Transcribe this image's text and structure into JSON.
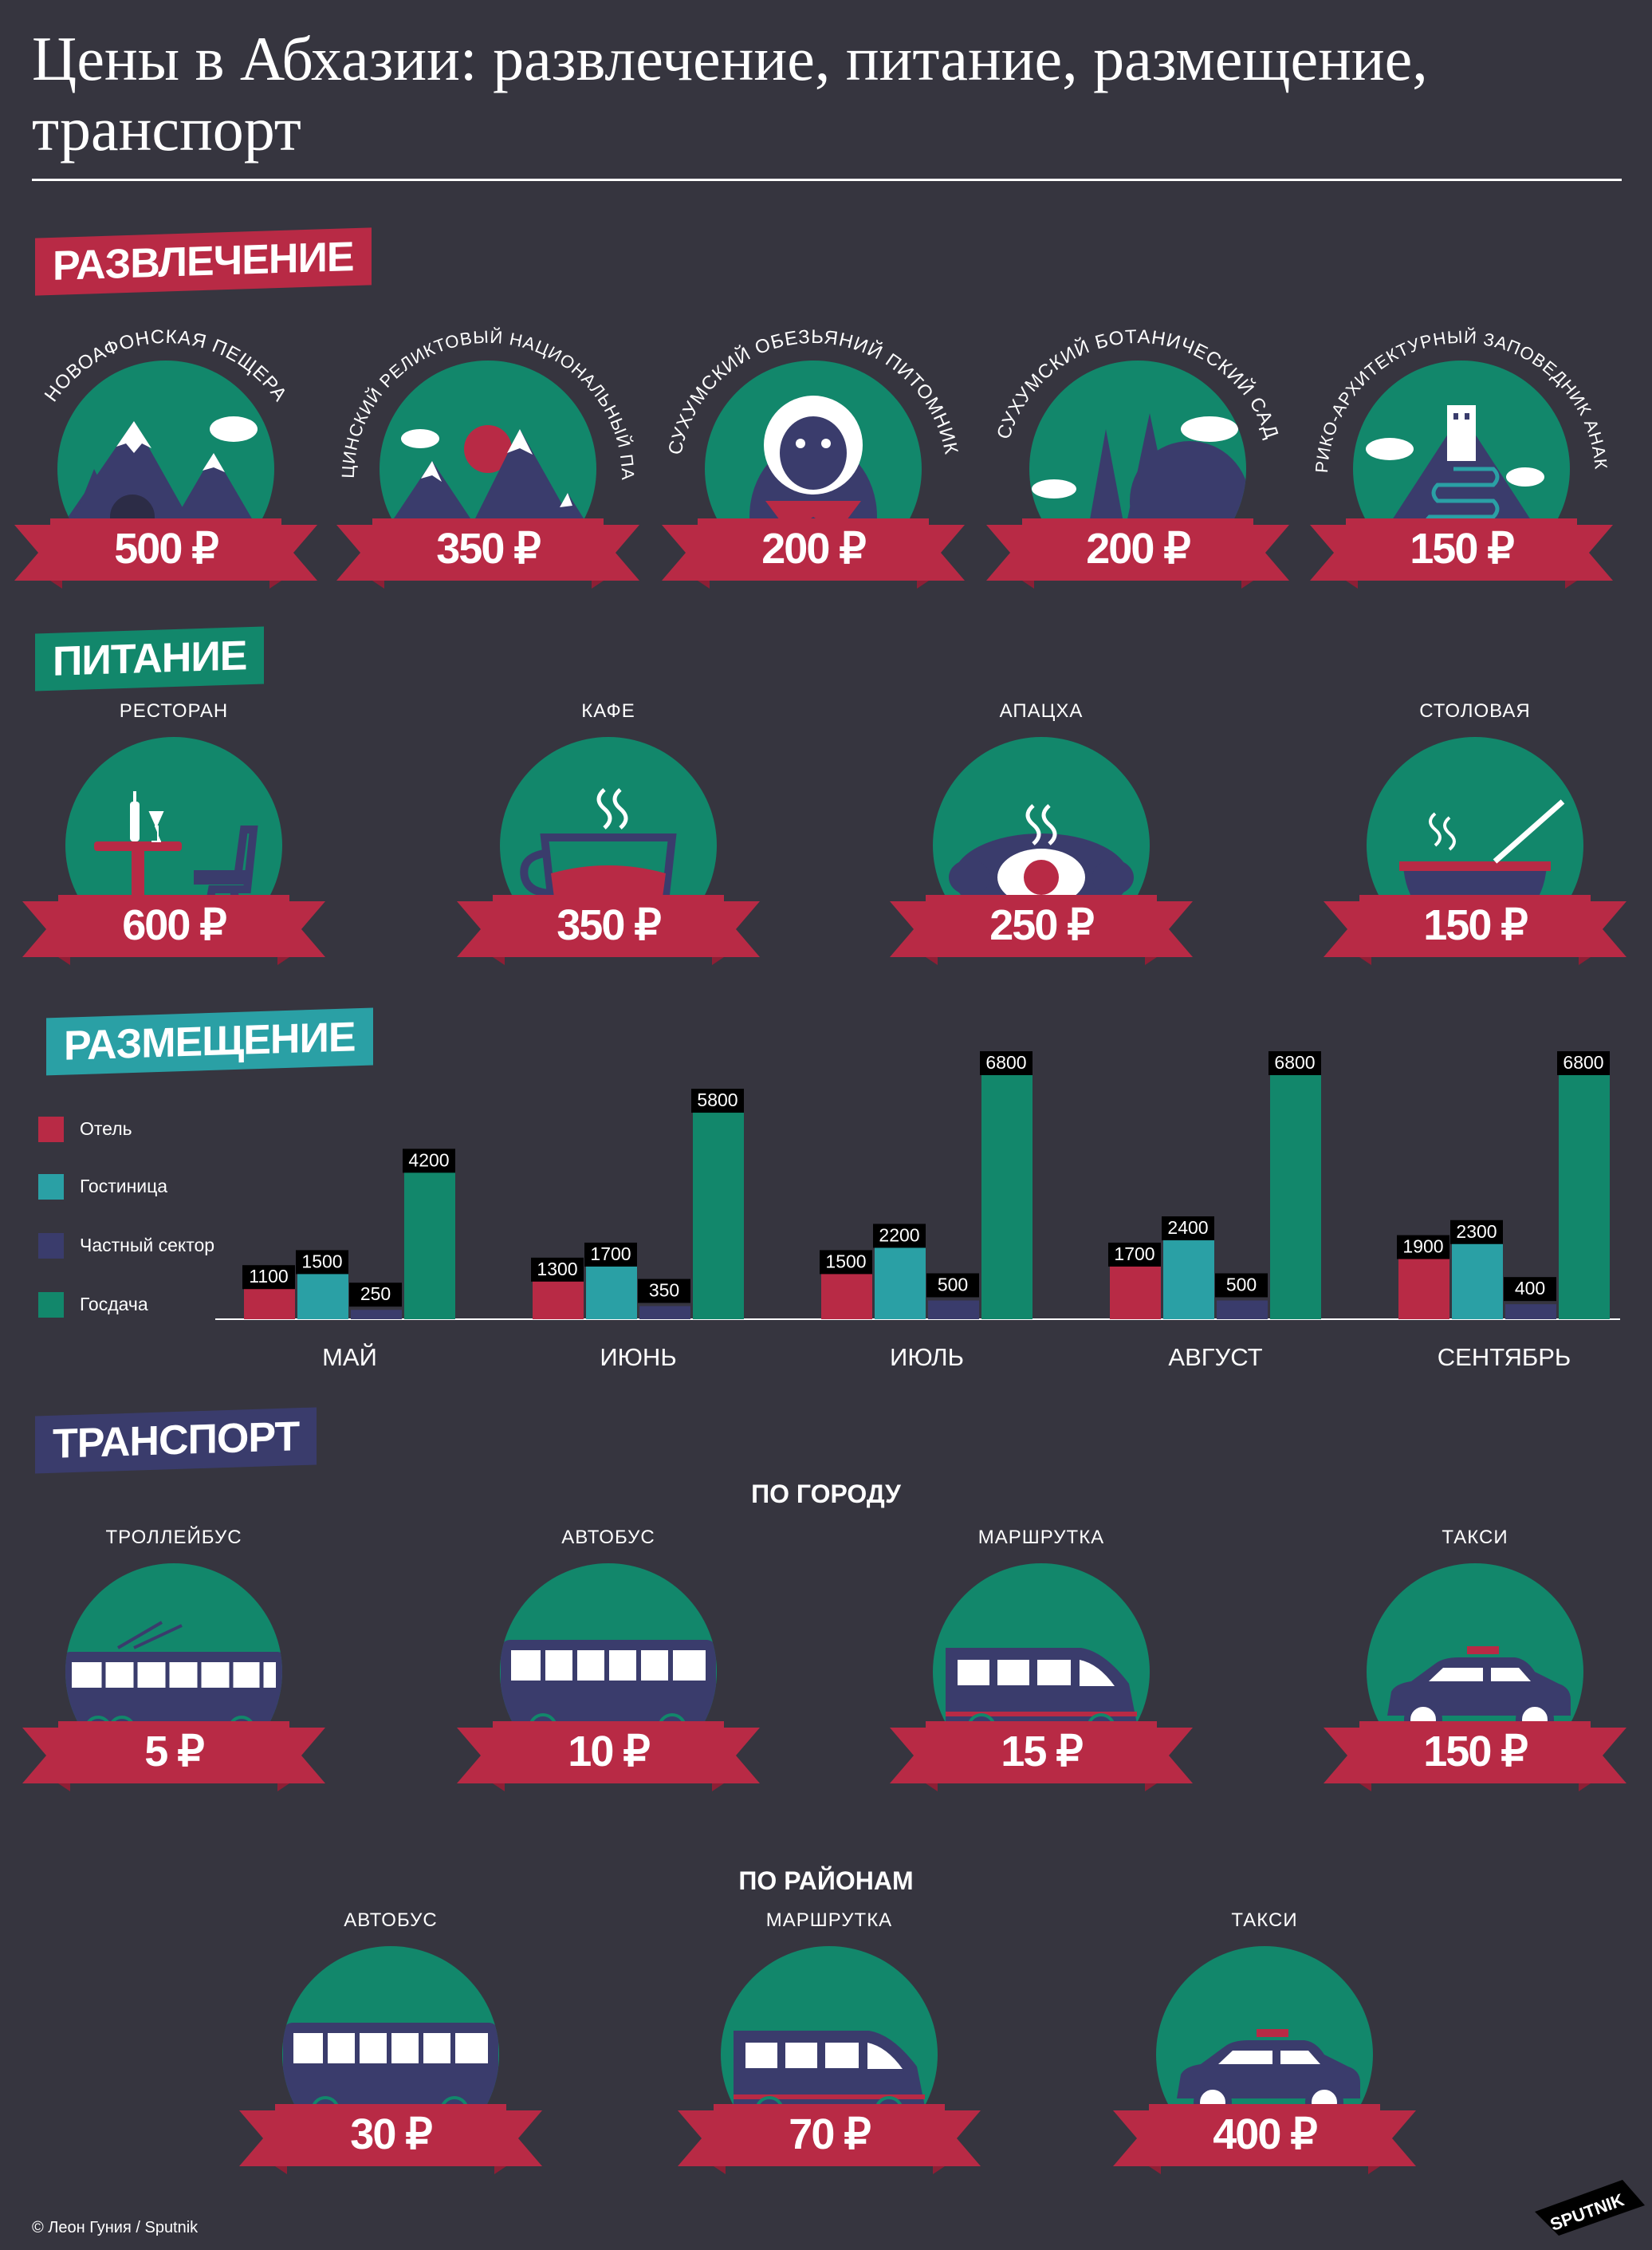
{
  "title": "Цены в Абхазии: развлечение, питание, размещение, транспорт",
  "colors": {
    "bg": "#36353f",
    "green": "#12876b",
    "red": "#b82a45",
    "teal": "#2aa0a5",
    "navy": "#3a3c6c",
    "white": "#ffffff"
  },
  "sections": {
    "entertainment": {
      "label": "РАЗВЛЕЧЕНИЕ",
      "items": [
        {
          "name": "НОВОАФОНСКАЯ ПЕЩЕРА",
          "price": "500 ₽",
          "icon": "cave-mountain-icon"
        },
        {
          "name": "РИЦИНСКИЙ РЕЛИКТОВЫЙ НАЦИОНАЛЬНЫЙ ПАРК",
          "price": "350 ₽",
          "icon": "mountain-lake-icon"
        },
        {
          "name": "СУХУМСКИЙ ОБЕЗЬЯНИЙ ПИТОМНИК",
          "price": "200 ₽",
          "icon": "monkey-icon"
        },
        {
          "name": "СУХУМСКИЙ БОТАНИЧЕСКИЙ САД",
          "price": "200 ₽",
          "icon": "trees-icon"
        },
        {
          "name": "ИСТОРИКО-АРХИТЕКТУРНЫЙ ЗАПОВЕДНИК АНАКОПИЯ",
          "price": "150 ₽",
          "icon": "fortress-tower-icon"
        }
      ]
    },
    "food": {
      "label": "ПИТАНИЕ",
      "items": [
        {
          "name": "РЕСТОРАН",
          "price": "600 ₽",
          "icon": "restaurant-table-icon"
        },
        {
          "name": "КАФЕ",
          "price": "350 ₽",
          "icon": "coffee-cup-icon"
        },
        {
          "name": "АПАЦХА",
          "price": "250 ₽",
          "icon": "dish-icon"
        },
        {
          "name": "СТОЛОВАЯ",
          "price": "150 ₽",
          "icon": "soup-bowl-icon"
        }
      ]
    },
    "lodging": {
      "label": "РАЗМЕЩЕНИЕ"
    },
    "transport": {
      "label": "ТРАНСПОРТ",
      "city": {
        "label": "ПО ГОРОДУ",
        "items": [
          {
            "name": "ТРОЛЛЕЙБУС",
            "price": "5 ₽",
            "icon": "trolleybus-icon"
          },
          {
            "name": "АВТОБУС",
            "price": "10 ₽",
            "icon": "bus-icon"
          },
          {
            "name": "МАРШРУТКА",
            "price": "15 ₽",
            "icon": "minibus-icon"
          },
          {
            "name": "ТАКСИ",
            "price": "150 ₽",
            "icon": "taxi-icon"
          }
        ]
      },
      "districts": {
        "label": "ПО РАЙОНАМ",
        "items": [
          {
            "name": "АВТОБУС",
            "price": "30 ₽",
            "icon": "bus-icon"
          },
          {
            "name": "МАРШРУТКА",
            "price": "70 ₽",
            "icon": "minibus-icon"
          },
          {
            "name": "ТАКСИ",
            "price": "400 ₽",
            "icon": "taxi-icon"
          }
        ]
      }
    }
  },
  "chart_data": {
    "type": "bar",
    "categories": [
      "МАЙ",
      "ИЮНЬ",
      "ИЮЛЬ",
      "АВГУСТ",
      "СЕНТЯБРЬ"
    ],
    "series": [
      {
        "name": "Отель",
        "color": "#b82a45",
        "values": [
          1100,
          1300,
          1500,
          1700,
          1900
        ]
      },
      {
        "name": "Гостиница",
        "color": "#2aa0a5",
        "values": [
          1500,
          1700,
          2200,
          2400,
          2300
        ]
      },
      {
        "name": "Частный сектор",
        "color": "#3a3c6c",
        "values": [
          250,
          350,
          500,
          500,
          400
        ]
      },
      {
        "name": "Госдача",
        "color": "#12876b",
        "values": [
          4200,
          5800,
          6800,
          6800,
          6800
        ]
      }
    ],
    "ylim": [
      0,
      6800
    ],
    "legend": "left",
    "grid": false
  },
  "footer": {
    "credit": "© Леон Гуния / Sputnik",
    "logo": "SPUTNIK"
  }
}
